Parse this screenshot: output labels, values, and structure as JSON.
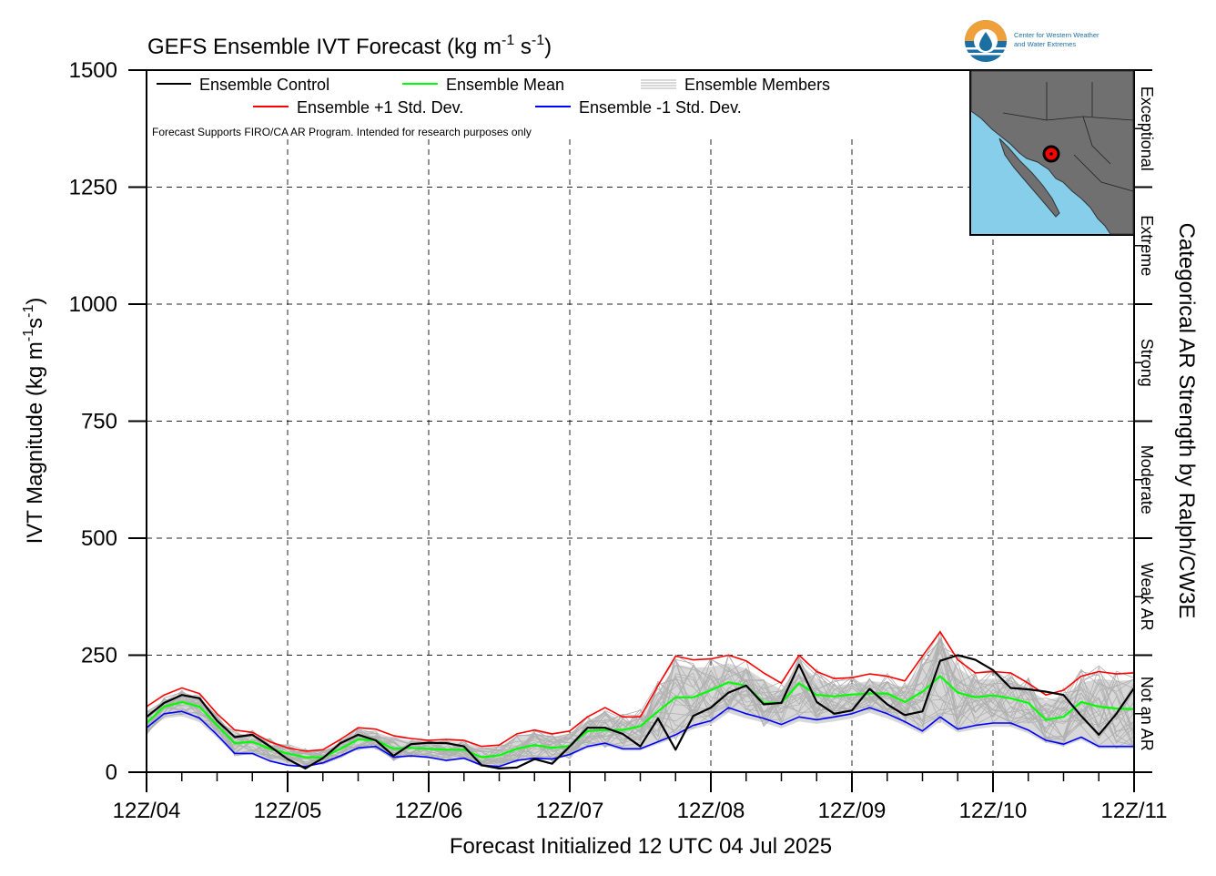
{
  "chart_data": {
    "type": "line",
    "title": "GEFS Ensemble IVT Forecast (kg m",
    "title_units": {
      "sup1": "-1",
      "mid": " s",
      "sup2": "-1",
      "end": ")"
    },
    "ylabel": "IVT Magnitude (kg m",
    "ylabel_units": {
      "sup1": "-1",
      "mid": "s",
      "sup2": "-1",
      "end": ")"
    },
    "xlabel": "Forecast Initialized 12 UTC 04 Jul 2025",
    "right_axis_label": "Categorical AR Strength by Ralph/CW3E",
    "ylim": [
      0,
      1500
    ],
    "xlim": [
      0,
      7
    ],
    "y_ticks": [
      "0",
      "250",
      "500",
      "750",
      "1000",
      "1250",
      "1500"
    ],
    "x_ticks": [
      "12Z/04",
      "12Z/05",
      "12Z/06",
      "12Z/07",
      "12Z/08",
      "12Z/09",
      "12Z/10",
      "12Z/11"
    ],
    "categories_right": [
      "Not an AR",
      "Weak AR",
      "Moderate",
      "Strong",
      "Extreme",
      "Exceptional"
    ],
    "legend": {
      "control": "Ensemble Control",
      "mean": "Ensemble Mean",
      "members": "Ensemble Members",
      "plus_std": "Ensemble +1 Std. Dev.",
      "minus_std": "Ensemble -1 Std. Dev."
    },
    "note": "Forecast Supports FIRO/CA AR Program. Intended for research purposes only",
    "grid": true,
    "legend_position": "top-left",
    "x_step_days": 0.125,
    "colors": {
      "control": "#000000",
      "mean": "#00ff00",
      "plus_std": "#ff0000",
      "minus_std": "#0000ff",
      "members": "#b0b0b0",
      "spread_fill": "#d8d8d8"
    },
    "series": [
      {
        "name": "Ensemble Control",
        "values": [
          118,
          148,
          165,
          158,
          110,
          75,
          80,
          55,
          28,
          8,
          30,
          62,
          80,
          68,
          35,
          60,
          63,
          62,
          55,
          15,
          8,
          10,
          28,
          18,
          55,
          95,
          95,
          82,
          55,
          115,
          48,
          120,
          138,
          170,
          185,
          145,
          148,
          230,
          150,
          125,
          132,
          178,
          145,
          122,
          130,
          238,
          250,
          240,
          218,
          180,
          177,
          172,
          165,
          120,
          80,
          125,
          180
        ]
      },
      {
        "name": "Ensemble Mean",
        "values": [
          105,
          140,
          150,
          140,
          100,
          62,
          65,
          50,
          40,
          32,
          32,
          50,
          70,
          68,
          50,
          52,
          50,
          48,
          48,
          32,
          36,
          50,
          58,
          52,
          56,
          88,
          90,
          90,
          98,
          130,
          160,
          160,
          175,
          192,
          185,
          148,
          148,
          190,
          165,
          162,
          166,
          168,
          168,
          150,
          172,
          205,
          170,
          160,
          164,
          158,
          148,
          112,
          118,
          150,
          140,
          136,
          135
        ]
      },
      {
        "name": "Ensemble +1 Std. Dev.",
        "values": [
          140,
          165,
          180,
          168,
          125,
          90,
          85,
          65,
          52,
          45,
          48,
          70,
          95,
          92,
          78,
          72,
          68,
          70,
          68,
          55,
          58,
          82,
          90,
          82,
          88,
          118,
          138,
          118,
          118,
          185,
          248,
          240,
          242,
          250,
          238,
          212,
          190,
          250,
          215,
          200,
          202,
          210,
          205,
          195,
          248,
          300,
          240,
          212,
          215,
          212,
          190,
          165,
          175,
          205,
          215,
          210,
          212
        ]
      },
      {
        "name": "Ensemble -1 Std. Dev.",
        "values": [
          95,
          125,
          130,
          116,
          80,
          40,
          40,
          24,
          15,
          12,
          20,
          35,
          52,
          55,
          32,
          35,
          32,
          25,
          30,
          15,
          12,
          25,
          30,
          28,
          38,
          55,
          62,
          50,
          50,
          65,
          80,
          100,
          110,
          138,
          125,
          115,
          102,
          118,
          112,
          118,
          125,
          138,
          125,
          108,
          88,
          118,
          92,
          100,
          105,
          105,
          90,
          68,
          60,
          75,
          55,
          55,
          55
        ]
      }
    ]
  }
}
